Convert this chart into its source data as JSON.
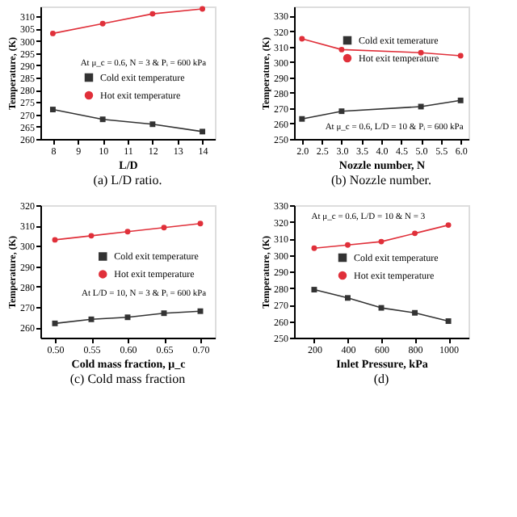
{
  "chart_data": [
    {
      "type": "line",
      "title": "(a) L/D ratio.",
      "xlabel": "L/D",
      "ylabel": "Temperature, (K)",
      "x": [
        8,
        10,
        12,
        14
      ],
      "xlim": [
        7.5,
        14.5
      ],
      "xticks": [
        8,
        9,
        10,
        11,
        12,
        13,
        14
      ],
      "ylim": [
        260,
        314
      ],
      "yticks": [
        260,
        265,
        270,
        275,
        280,
        285,
        290,
        295,
        300,
        305,
        310
      ],
      "legend": "right",
      "annotations": [
        "At μ_c = 0.6,  N = 3 & Pᵢ = 600 kPa"
      ],
      "series": [
        {
          "name": "Cold exit temperature",
          "color": "#333333",
          "marker": "square",
          "values": [
            272,
            268,
            266,
            263
          ]
        },
        {
          "name": "Hot exit temperature",
          "color": "#e0303a",
          "marker": "circle",
          "values": [
            303,
            307,
            311,
            313
          ]
        }
      ]
    },
    {
      "type": "line",
      "title": "(b) Nozzle number.",
      "xlabel": "Nozzle number, N",
      "ylabel": "Temperature, (K)",
      "x": [
        2,
        3,
        5,
        6
      ],
      "xlim": [
        1.8,
        6.2
      ],
      "xticks": [
        {
          "value": 2,
          "label": "2.0"
        },
        {
          "value": 2.5,
          "label": "2.5"
        },
        {
          "value": 3,
          "label": "3.0"
        },
        {
          "value": 3.5,
          "label": "3.5"
        },
        {
          "value": 4,
          "label": "4.0"
        },
        {
          "value": 4.5,
          "label": "4.5"
        },
        {
          "value": 5,
          "label": "5.0"
        },
        {
          "value": 5.5,
          "label": "5.5"
        },
        {
          "value": 6,
          "label": "6.0"
        }
      ],
      "ylim": [
        250,
        336
      ],
      "yticks": [
        250,
        260,
        270,
        280,
        290,
        300,
        310,
        320,
        330
      ],
      "legend": "top right",
      "annotations": [
        "At μ_c = 0.6,  L/D = 10 & Pᵢ = 600 kPa"
      ],
      "series": [
        {
          "name": "Cold exit temerature",
          "color": "#333333",
          "marker": "square",
          "values": [
            263,
            268,
            271,
            275
          ]
        },
        {
          "name": "Hot exit temperature",
          "color": "#e0303a",
          "marker": "circle",
          "values": [
            315,
            308,
            306,
            304
          ]
        }
      ]
    },
    {
      "type": "line",
      "title": "(c) Cold mass fraction",
      "xlabel": "Cold mass fraction, μ_c",
      "ylabel": "Temperature, (K)",
      "x": [
        0.5,
        0.55,
        0.6,
        0.65,
        0.7
      ],
      "xlim": [
        0.48,
        0.72
      ],
      "xticks": [
        {
          "value": 0.5,
          "label": "0.50"
        },
        {
          "value": 0.55,
          "label": "0.55"
        },
        {
          "value": 0.6,
          "label": "0.60"
        },
        {
          "value": 0.65,
          "label": "0.65"
        },
        {
          "value": 0.7,
          "label": "0.70"
        }
      ],
      "ylim": [
        255,
        320
      ],
      "yticks": [
        260,
        270,
        280,
        290,
        300,
        310,
        320
      ],
      "legend": "right",
      "annotations": [
        "At L/D = 10,  N = 3 & Pᵢ = 600 kPa"
      ],
      "series": [
        {
          "name": "Cold exit temperature",
          "color": "#333333",
          "marker": "square",
          "values": [
            262,
            264,
            265,
            267,
            268
          ]
        },
        {
          "name": "Hot exit temperature",
          "color": "#e0303a",
          "marker": "circle",
          "values": [
            303,
            305,
            307,
            309,
            311
          ]
        }
      ]
    },
    {
      "type": "line",
      "title": "(d)",
      "xlabel": "Inlet Pressure, kPa",
      "ylabel": "Temperature, (K)",
      "x": [
        200,
        400,
        600,
        800,
        1000
      ],
      "xlim": [
        80,
        1120
      ],
      "xticks": [
        200,
        400,
        600,
        800,
        1000
      ],
      "ylim": [
        250,
        330
      ],
      "yticks": [
        250,
        260,
        270,
        280,
        290,
        300,
        310,
        320,
        330
      ],
      "legend": "right",
      "annotations": [
        "At μ_c = 0.6,  L/D = 10 & N = 3"
      ],
      "series": [
        {
          "name": "Cold exit temperature",
          "color": "#333333",
          "marker": "square",
          "values": [
            279,
            274,
            268,
            265,
            260
          ]
        },
        {
          "name": "Hot exit temperature",
          "color": "#e0303a",
          "marker": "circle",
          "values": [
            304,
            306,
            308,
            313,
            318
          ]
        }
      ]
    }
  ]
}
